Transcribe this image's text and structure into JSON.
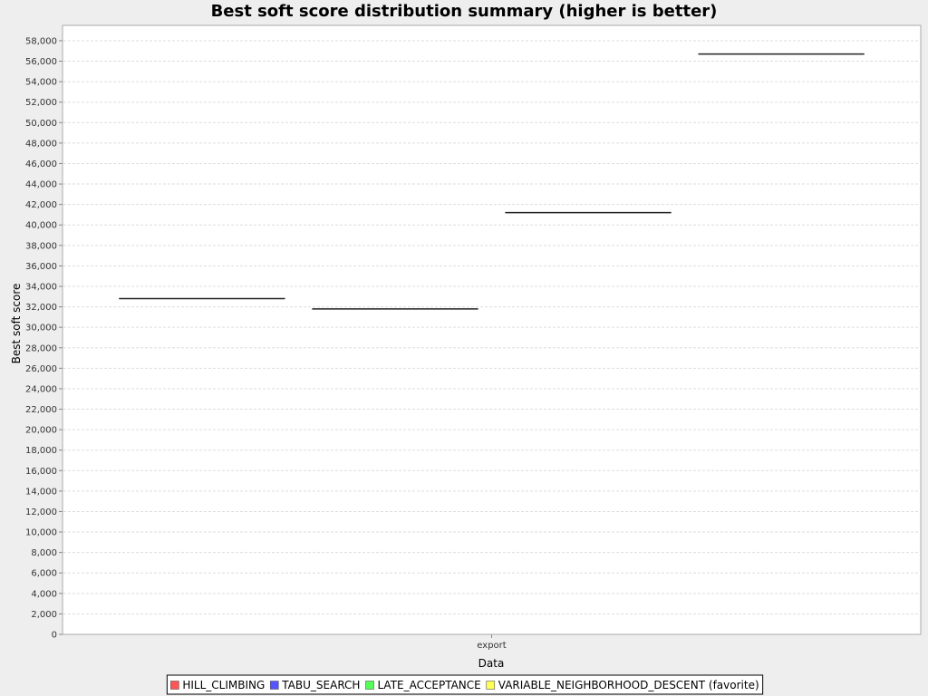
{
  "chart_data": {
    "type": "boxplot",
    "title": "Best soft score distribution summary (higher is better)",
    "xlabel": "Data",
    "ylabel": "Best soft score",
    "categories": [
      "export"
    ],
    "ylim": [
      0,
      59500
    ],
    "yticks": [
      0,
      2000,
      4000,
      6000,
      8000,
      10000,
      12000,
      14000,
      16000,
      18000,
      20000,
      22000,
      24000,
      26000,
      28000,
      30000,
      32000,
      34000,
      36000,
      38000,
      40000,
      42000,
      44000,
      46000,
      48000,
      50000,
      52000,
      54000,
      56000,
      58000
    ],
    "ytick_labels": [
      "0",
      "2,000",
      "4,000",
      "6,000",
      "8,000",
      "10,000",
      "12,000",
      "14,000",
      "16,000",
      "18,000",
      "20,000",
      "22,000",
      "24,000",
      "26,000",
      "28,000",
      "30,000",
      "32,000",
      "34,000",
      "36,000",
      "38,000",
      "40,000",
      "42,000",
      "44,000",
      "46,000",
      "48,000",
      "50,000",
      "52,000",
      "54,000",
      "56,000",
      "58,000"
    ],
    "grid": true,
    "legend_position": "bottom",
    "series": [
      {
        "name": "HILL_CLIMBING",
        "color": "#ff5555",
        "values": [
          32800
        ]
      },
      {
        "name": "TABU_SEARCH",
        "color": "#5555ff",
        "values": [
          31800
        ]
      },
      {
        "name": "LATE_ACCEPTANCE",
        "color": "#55ff55",
        "values": [
          41200
        ]
      },
      {
        "name": "VARIABLE_NEIGHBORHOOD_DESCENT (favorite)",
        "color": "#ffff55",
        "values": [
          56700
        ]
      }
    ]
  }
}
